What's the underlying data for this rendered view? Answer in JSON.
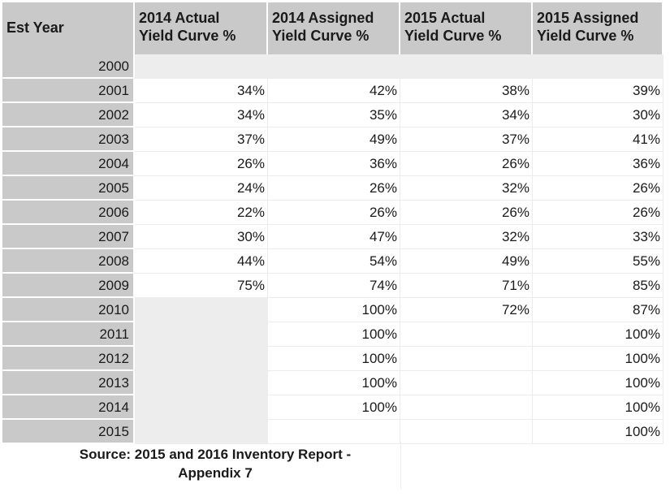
{
  "table": {
    "headers": {
      "est_year": "Est Year",
      "col1": [
        "2014 Actual",
        "Yield Curve %"
      ],
      "col2": [
        "2014 Assigned",
        "Yield Curve %"
      ],
      "col3": [
        "2015 Actual",
        "Yield Curve %"
      ],
      "col4": [
        "2015 Assigned",
        "Yield Curve %"
      ]
    },
    "rows": [
      {
        "year": "2000",
        "v": [
          "",
          "",
          "",
          ""
        ]
      },
      {
        "year": "2001",
        "v": [
          "34%",
          "42%",
          "38%",
          "39%"
        ]
      },
      {
        "year": "2002",
        "v": [
          "34%",
          "35%",
          "34%",
          "30%"
        ]
      },
      {
        "year": "2003",
        "v": [
          "37%",
          "49%",
          "37%",
          "41%"
        ]
      },
      {
        "year": "2004",
        "v": [
          "26%",
          "36%",
          "26%",
          "36%"
        ]
      },
      {
        "year": "2005",
        "v": [
          "24%",
          "26%",
          "32%",
          "26%"
        ]
      },
      {
        "year": "2006",
        "v": [
          "22%",
          "26%",
          "26%",
          "26%"
        ]
      },
      {
        "year": "2007",
        "v": [
          "30%",
          "47%",
          "32%",
          "33%"
        ]
      },
      {
        "year": "2008",
        "v": [
          "44%",
          "54%",
          "49%",
          "55%"
        ]
      },
      {
        "year": "2009",
        "v": [
          "75%",
          "74%",
          "71%",
          "85%"
        ]
      },
      {
        "year": "2010",
        "v": [
          "",
          "100%",
          "72%",
          "87%"
        ]
      },
      {
        "year": "2011",
        "v": [
          "",
          "100%",
          "",
          "100%"
        ]
      },
      {
        "year": "2012",
        "v": [
          "",
          "100%",
          "",
          "100%"
        ]
      },
      {
        "year": "2013",
        "v": [
          "",
          "100%",
          "",
          "100%"
        ]
      },
      {
        "year": "2014",
        "v": [
          "",
          "100%",
          "",
          "100%"
        ]
      },
      {
        "year": "2015",
        "v": [
          "",
          "",
          "",
          "100%"
        ]
      }
    ]
  },
  "source": {
    "line1": "Source: 2015 and 2016 Inventory Report -",
    "line2": "Appendix 7"
  },
  "colors": {
    "header_bg": "#c9c9c9",
    "shaded_cell": "#ededed"
  }
}
